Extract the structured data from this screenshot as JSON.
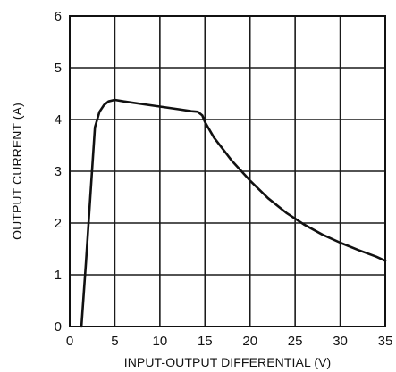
{
  "chart_data": {
    "type": "line",
    "title": "",
    "xlabel": "INPUT-OUTPUT DIFFERENTIAL (V)",
    "ylabel": "OUTPUT CURRENT (A)",
    "xlim": [
      0,
      35
    ],
    "ylim": [
      0,
      6
    ],
    "xticks": [
      "0",
      "5",
      "10",
      "15",
      "20",
      "25",
      "30",
      "35"
    ],
    "yticks": [
      "0",
      "1",
      "2",
      "3",
      "4",
      "5",
      "6"
    ],
    "grid": true,
    "series": [
      {
        "x": [
          1.3,
          1.8,
          2.3,
          2.8,
          3.3,
          3.8,
          4.3,
          5.0,
          6.0,
          8.0,
          10.0,
          12.0,
          13.5,
          14.2,
          14.7,
          15.0,
          16.0,
          18.0,
          20.0,
          22.0,
          24.0,
          26.0,
          28.0,
          30.0,
          32.0,
          34.0,
          35.0
        ],
        "y": [
          0.0,
          1.25,
          2.55,
          3.85,
          4.15,
          4.28,
          4.35,
          4.38,
          4.35,
          4.3,
          4.25,
          4.2,
          4.16,
          4.15,
          4.08,
          3.95,
          3.65,
          3.2,
          2.82,
          2.48,
          2.2,
          1.97,
          1.78,
          1.62,
          1.48,
          1.35,
          1.27
        ]
      }
    ],
    "color": "#111111"
  }
}
